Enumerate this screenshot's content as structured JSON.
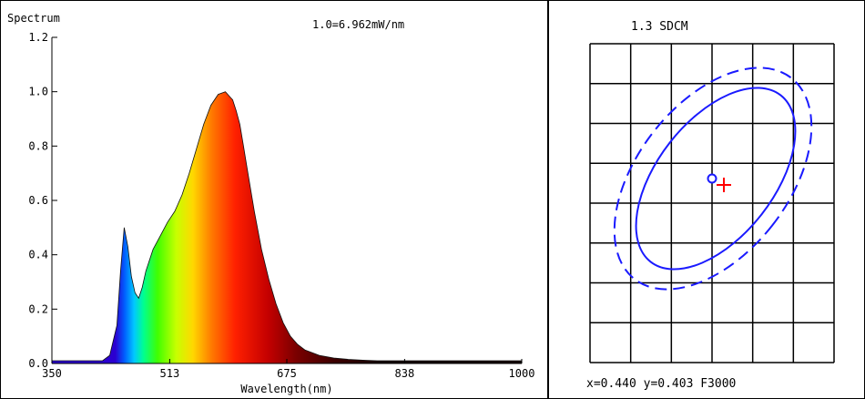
{
  "spectrum_panel": {
    "corner_label": "Spectrum",
    "scale_note": "1.0=6.962mW/nm"
  },
  "sdcm_panel": {
    "title": "1.3 SDCM",
    "readout": "x=0.440 y=0.403 F3000",
    "colors": {
      "ellipse": "#1a1aff",
      "marker": "#ff0000",
      "grid": "#000000"
    },
    "measured_point": "circle-marker",
    "target_point": "cross-marker"
  },
  "chart_data": {
    "type": "area",
    "title": "",
    "xlabel": "Wavelength(nm)",
    "ylabel": "",
    "xlim": [
      350,
      1000
    ],
    "ylim": [
      0,
      1.2
    ],
    "xticks": [
      350,
      513,
      675,
      838,
      1000
    ],
    "yticks": [
      "0.0",
      "0.2",
      "0.4",
      "0.6",
      "0.8",
      "1.0",
      "1.2"
    ],
    "fill": "visible-spectrum-gradient",
    "grid": false,
    "series": [
      {
        "x": [
          350,
          380,
          400,
          420,
          430,
          440,
          445,
          450,
          455,
          460,
          465,
          470,
          475,
          480,
          490,
          500,
          510,
          520,
          530,
          540,
          550,
          560,
          570,
          580,
          590,
          600,
          605,
          610,
          615,
          620,
          630,
          640,
          650,
          660,
          670,
          680,
          690,
          700,
          720,
          740,
          760,
          780,
          800,
          850,
          900,
          1000
        ],
        "values": [
          0.01,
          0.01,
          0.01,
          0.01,
          0.03,
          0.14,
          0.34,
          0.5,
          0.43,
          0.32,
          0.26,
          0.24,
          0.28,
          0.34,
          0.42,
          0.47,
          0.52,
          0.56,
          0.62,
          0.7,
          0.79,
          0.88,
          0.95,
          0.99,
          1.0,
          0.97,
          0.93,
          0.88,
          0.8,
          0.72,
          0.56,
          0.42,
          0.31,
          0.22,
          0.15,
          0.1,
          0.07,
          0.05,
          0.03,
          0.02,
          0.015,
          0.012,
          0.01,
          0.01,
          0.01,
          0.01
        ]
      }
    ]
  }
}
